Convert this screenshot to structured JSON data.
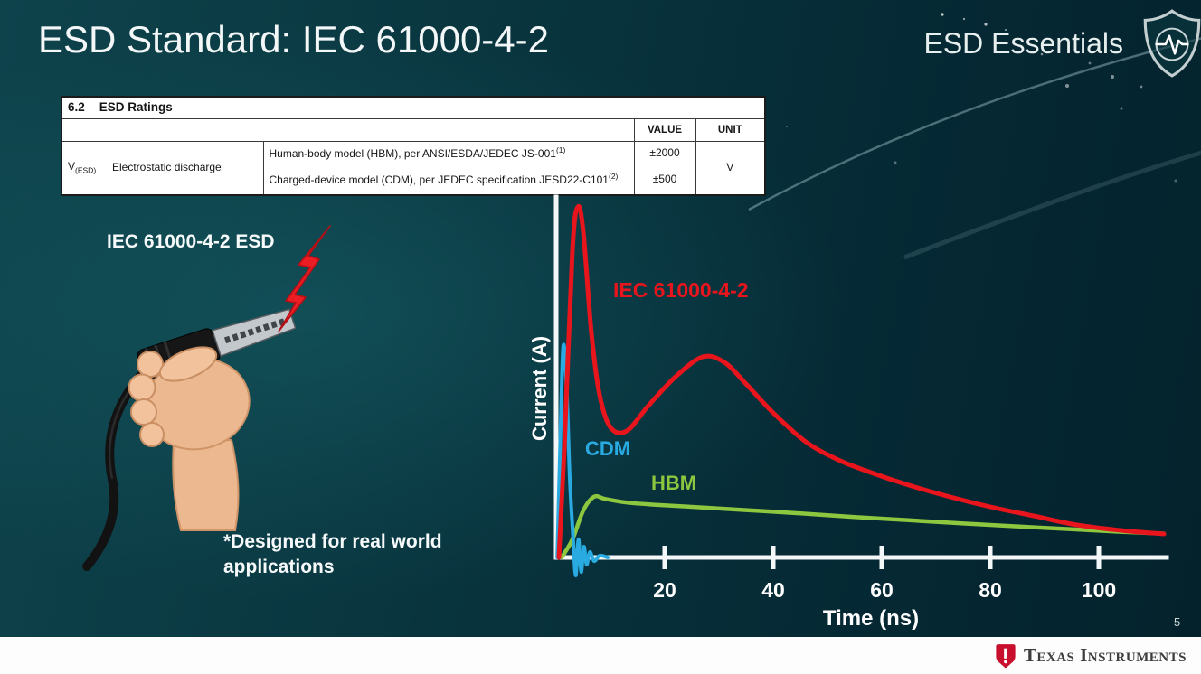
{
  "slide": {
    "title": "ESD Standard: IEC 61000-4-2",
    "brand": "ESD Essentials",
    "page_number": "5",
    "footer_brand": "Texas Instruments"
  },
  "icons": {
    "brand_icon": "shield-pulse-icon",
    "strike_icon": "lightning-bolt-icon",
    "footer_icon": "ti-logo-icon"
  },
  "ratings_table": {
    "section_number": "6.2",
    "section_title": "ESD Ratings",
    "value_header": "VALUE",
    "unit_header": "UNIT",
    "symbol_base": "V",
    "symbol_sub": "(ESD)",
    "parameter": "Electrostatic discharge",
    "rows": [
      {
        "description": "Human-body model (HBM), per ANSI/ESDA/JEDEC JS-001",
        "footnote": "(1)",
        "value": "±2000"
      },
      {
        "description": "Charged-device model (CDM), per JEDEC specification JESD22-C101",
        "footnote": "(2)",
        "value": "±500"
      }
    ],
    "unit": "V"
  },
  "illustration": {
    "caption": "IEC 61000-4-2 ESD",
    "note": "*Designed for real world applications"
  },
  "chart_data": {
    "type": "line",
    "title": "",
    "xlabel": "Time (ns)",
    "ylabel": "Current (A)",
    "x_unit": "ns",
    "xlim": [
      0,
      112
    ],
    "x_ticks": [
      20,
      40,
      60,
      80,
      100
    ],
    "ylim_normalized": [
      0,
      1
    ],
    "grid": false,
    "legend_position": "inline-labels",
    "series": [
      {
        "name": "IEC 61000-4-2",
        "color": "#e8151d",
        "stroke_width": 5,
        "points": [
          [
            0.5,
            0
          ],
          [
            1.5,
            0.3
          ],
          [
            3,
            0.85
          ],
          [
            4,
            0.97
          ],
          [
            5,
            0.9
          ],
          [
            6.5,
            0.62
          ],
          [
            8,
            0.45
          ],
          [
            10,
            0.36
          ],
          [
            13,
            0.35
          ],
          [
            17,
            0.42
          ],
          [
            22,
            0.5
          ],
          [
            27,
            0.555
          ],
          [
            31,
            0.54
          ],
          [
            35,
            0.48
          ],
          [
            40,
            0.4
          ],
          [
            46,
            0.32
          ],
          [
            52,
            0.27
          ],
          [
            58,
            0.235
          ],
          [
            65,
            0.2
          ],
          [
            72,
            0.17
          ],
          [
            80,
            0.14
          ],
          [
            88,
            0.115
          ],
          [
            96,
            0.09
          ],
          [
            104,
            0.075
          ],
          [
            112,
            0.065
          ]
        ]
      },
      {
        "name": "CDM",
        "color": "#29abe2",
        "stroke_width": 4,
        "points": [
          [
            0.2,
            0
          ],
          [
            0.8,
            0.35
          ],
          [
            1.3,
            0.585
          ],
          [
            1.9,
            0.48
          ],
          [
            2.5,
            0.22
          ],
          [
            3.1,
            0.06
          ],
          [
            3.6,
            -0.05
          ],
          [
            4.1,
            0.05
          ],
          [
            4.6,
            -0.04
          ],
          [
            5.1,
            0.03
          ],
          [
            5.6,
            -0.02
          ],
          [
            6.2,
            0.015
          ],
          [
            7,
            -0.01
          ],
          [
            8,
            0.005
          ],
          [
            9.5,
            0
          ]
        ]
      },
      {
        "name": "HBM",
        "color": "#8dc63f",
        "stroke_width": 4.5,
        "points": [
          [
            1,
            0
          ],
          [
            3,
            0.05
          ],
          [
            5,
            0.13
          ],
          [
            7,
            0.168
          ],
          [
            9,
            0.162
          ],
          [
            13,
            0.152
          ],
          [
            18,
            0.146
          ],
          [
            25,
            0.14
          ],
          [
            35,
            0.131
          ],
          [
            45,
            0.122
          ],
          [
            55,
            0.112
          ],
          [
            65,
            0.103
          ],
          [
            75,
            0.094
          ],
          [
            85,
            0.086
          ],
          [
            95,
            0.078
          ],
          [
            104,
            0.071
          ],
          [
            112,
            0.066
          ]
        ]
      }
    ]
  }
}
